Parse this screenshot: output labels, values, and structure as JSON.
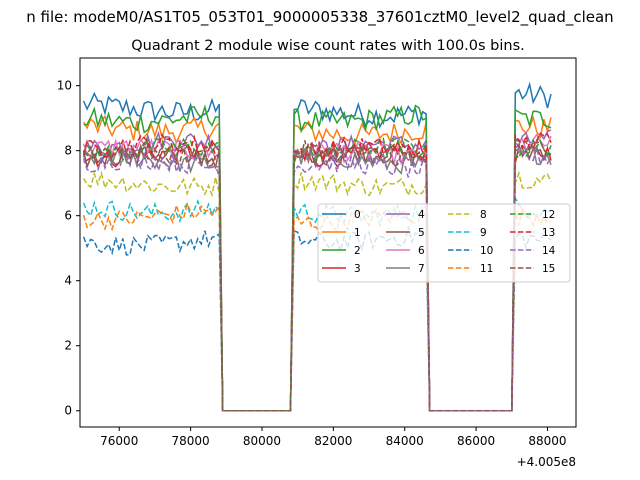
{
  "figure": {
    "suptitle": "n file: modeM0/AS1T05_053T01_9000005338_37601cztM0_level2_quad_clean",
    "title": "Quadrant 2 module wise count rates with 100.0s bins."
  },
  "chart_data": {
    "type": "line",
    "title": "Quadrant 2 module wise count rates with 100.0s bins.",
    "xlabel": "",
    "ylabel": "",
    "x_offset_label": "+4.005e8",
    "xlim": [
      74900,
      88800
    ],
    "ylim": [
      -0.5,
      10.85
    ],
    "xticks": [
      76000,
      78000,
      80000,
      82000,
      84000,
      86000,
      88000
    ],
    "yticks": [
      0,
      2,
      4,
      6,
      8,
      10
    ],
    "grid": false,
    "legend_position": "center-right",
    "legend_columns": 4,
    "segments": [
      {
        "start": 75000,
        "end": 78800,
        "step": 100
      },
      {
        "start": 80900,
        "end": 84600,
        "step": 100
      },
      {
        "start": 87100,
        "end": 88100,
        "step": 100
      }
    ],
    "gap_points": [
      [
        78900,
        0
      ],
      [
        80800,
        0
      ],
      [
        84700,
        0
      ],
      [
        87000,
        0
      ]
    ],
    "series": [
      {
        "name": "0",
        "color": "#1f77b4",
        "dash": "solid",
        "levels": [
          9.3,
          9.2,
          9.7
        ]
      },
      {
        "name": "1",
        "color": "#ff7f0e",
        "dash": "solid",
        "levels": [
          8.7,
          8.6,
          8.8
        ]
      },
      {
        "name": "2",
        "color": "#2ca02c",
        "dash": "solid",
        "levels": [
          9.0,
          9.0,
          9.1
        ]
      },
      {
        "name": "3",
        "color": "#d62728",
        "dash": "solid",
        "levels": [
          7.9,
          7.9,
          8.0
        ]
      },
      {
        "name": "4",
        "color": "#9467bd",
        "dash": "solid",
        "levels": [
          8.2,
          8.1,
          8.3
        ]
      },
      {
        "name": "5",
        "color": "#8c564b",
        "dash": "solid",
        "levels": [
          7.8,
          7.8,
          7.9
        ]
      },
      {
        "name": "6",
        "color": "#e377c2",
        "dash": "solid",
        "levels": [
          8.0,
          7.9,
          8.1
        ]
      },
      {
        "name": "7",
        "color": "#7f7f7f",
        "dash": "solid",
        "levels": [
          7.7,
          7.7,
          7.8
        ]
      },
      {
        "name": "8",
        "color": "#bcbd22",
        "dash": "dashed",
        "levels": [
          7.0,
          7.0,
          7.1
        ]
      },
      {
        "name": "9",
        "color": "#17becf",
        "dash": "dashed",
        "levels": [
          6.2,
          6.1,
          6.3
        ]
      },
      {
        "name": "10",
        "color": "#1f77b4",
        "dash": "dashed",
        "levels": [
          5.2,
          5.3,
          5.4
        ]
      },
      {
        "name": "11",
        "color": "#ff7f0e",
        "dash": "dashed",
        "levels": [
          6.0,
          5.9,
          6.1
        ]
      },
      {
        "name": "12",
        "color": "#2ca02c",
        "dash": "dashed",
        "levels": [
          8.0,
          8.0,
          8.1
        ]
      },
      {
        "name": "13",
        "color": "#d62728",
        "dash": "dashed",
        "levels": [
          8.1,
          8.0,
          8.2
        ]
      },
      {
        "name": "14",
        "color": "#9467bd",
        "dash": "dashed",
        "levels": [
          7.6,
          7.5,
          7.7
        ]
      },
      {
        "name": "15",
        "color": "#8c564b",
        "dash": "dashed",
        "levels": [
          7.9,
          7.9,
          8.0
        ]
      }
    ]
  }
}
